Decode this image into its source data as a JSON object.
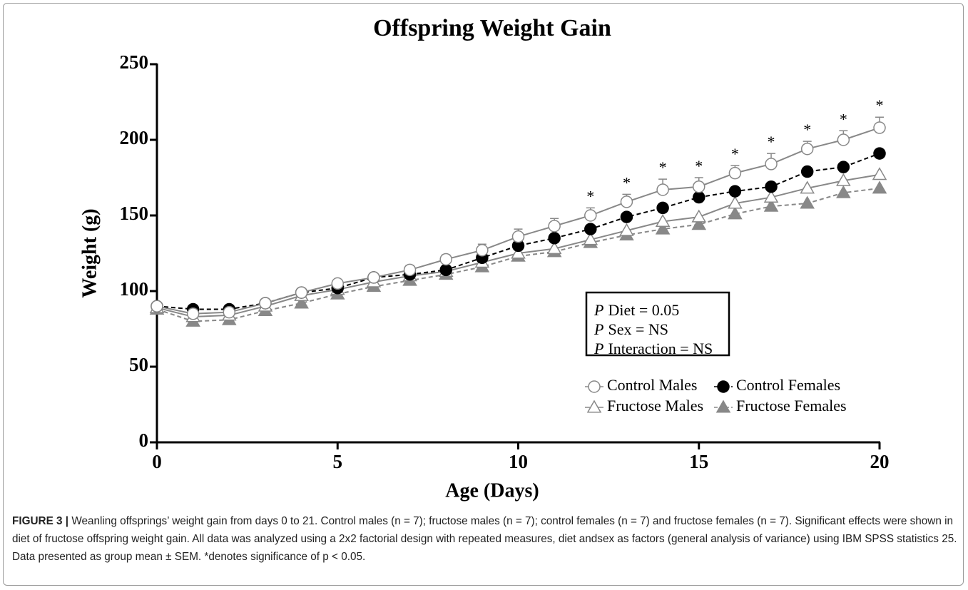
{
  "chart_data": {
    "type": "line",
    "title": "Offspring Weight Gain",
    "x_label": "Age (Days)",
    "y_label": "Weight (g)",
    "x": [
      0,
      1,
      2,
      3,
      4,
      5,
      6,
      7,
      8,
      9,
      10,
      11,
      12,
      13,
      14,
      15,
      16,
      17,
      18,
      19,
      20
    ],
    "xlim": [
      0,
      20
    ],
    "xticks": [
      0,
      5,
      10,
      15,
      20
    ],
    "ylim": [
      0,
      250
    ],
    "yticks": [
      0,
      50,
      100,
      150,
      200,
      250
    ],
    "series": [
      {
        "name": "Control Males",
        "color": "#888888",
        "dashed": false,
        "marker": "circle",
        "filled": false,
        "values": [
          90,
          85,
          86,
          92,
          99,
          105,
          109,
          114,
          121,
          127,
          136,
          143,
          150,
          159,
          167,
          169,
          178,
          184,
          194,
          200,
          208
        ],
        "errors": [
          2,
          3,
          3,
          2,
          2,
          2,
          2,
          3,
          3,
          4,
          5,
          5,
          5,
          5,
          7,
          6,
          5,
          7,
          5,
          6,
          7
        ]
      },
      {
        "name": "Control Females",
        "color": "#000000",
        "dashed": true,
        "marker": "circle",
        "filled": true,
        "values": [
          90,
          88,
          88,
          92,
          99,
          102,
          109,
          111,
          114,
          122,
          130,
          135,
          141,
          149,
          155,
          162,
          166,
          169,
          179,
          182,
          191
        ]
      },
      {
        "name": "Fructose Males",
        "color": "#888888",
        "dashed": false,
        "marker": "triangle",
        "filled": false,
        "values": [
          89,
          83,
          84,
          90,
          97,
          101,
          106,
          110,
          113,
          119,
          125,
          128,
          134,
          140,
          146,
          149,
          158,
          162,
          168,
          173,
          177
        ]
      },
      {
        "name": "Fructose Females",
        "color": "#888888",
        "dashed": true,
        "marker": "triangle",
        "filled": true,
        "values": [
          88,
          80,
          81,
          87,
          92,
          98,
          103,
          107,
          111,
          116,
          123,
          126,
          132,
          137,
          141,
          144,
          151,
          156,
          158,
          165,
          168
        ]
      }
    ],
    "significance": {
      "label": "*",
      "x": [
        12,
        13,
        14,
        15,
        16,
        17,
        18,
        19,
        20
      ]
    },
    "stats": [
      {
        "italic": "P",
        "text": "Diet = 0.05"
      },
      {
        "italic": "P",
        "text": "Sex = NS"
      },
      {
        "italic": "P",
        "text": "Interaction = NS"
      }
    ]
  },
  "caption": {
    "label": "FIGURE 3 |",
    "text": "Weanling offsprings’ weight gain from days 0 to 21. Control males (n = 7); fructose males (n = 7); control females (n = 7) and fructose females (n = 7). Significant effects were shown in diet of fructose offspring weight gain. All data was analyzed using a 2x2 factorial design with repeated measures, diet andsex as factors (general analysis of variance) using IBM SPSS statistics 25. Data presented as group mean ± SEM. *denotes significance of p < 0.05."
  }
}
